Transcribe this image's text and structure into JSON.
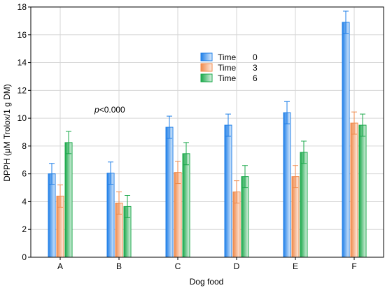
{
  "chart_data": {
    "type": "bar",
    "xlabel": "Dog food",
    "ylabel": "DPPH (μM Trolox/1 g DM)",
    "ylim": [
      0,
      18
    ],
    "yticks": [
      0,
      2,
      4,
      6,
      8,
      10,
      12,
      14,
      16,
      18
    ],
    "categories": [
      "A",
      "B",
      "C",
      "D",
      "E",
      "F"
    ],
    "grid": true,
    "legend_position": "top-center",
    "annotation": {
      "italic": "p",
      "rest": "<0.000"
    },
    "series": [
      {
        "legend_label": "Time",
        "legend_value": "0",
        "color": "#1f7fe8",
        "values": [
          6.0,
          6.05,
          9.35,
          9.5,
          10.4,
          16.9
        ],
        "errors": [
          0.75,
          0.8,
          0.8,
          0.8,
          0.8,
          0.8
        ]
      },
      {
        "legend_label": "Time",
        "legend_value": "3",
        "color": "#f08a4b",
        "values": [
          4.4,
          3.9,
          6.1,
          4.7,
          5.8,
          9.65
        ],
        "errors": [
          0.8,
          0.8,
          0.8,
          0.8,
          0.8,
          0.8
        ]
      },
      {
        "legend_label": "Time",
        "legend_value": "6",
        "color": "#1aa84a",
        "values": [
          8.25,
          3.65,
          7.45,
          5.8,
          7.55,
          9.5
        ],
        "errors": [
          0.8,
          0.8,
          0.8,
          0.8,
          0.8,
          0.8
        ]
      }
    ]
  }
}
